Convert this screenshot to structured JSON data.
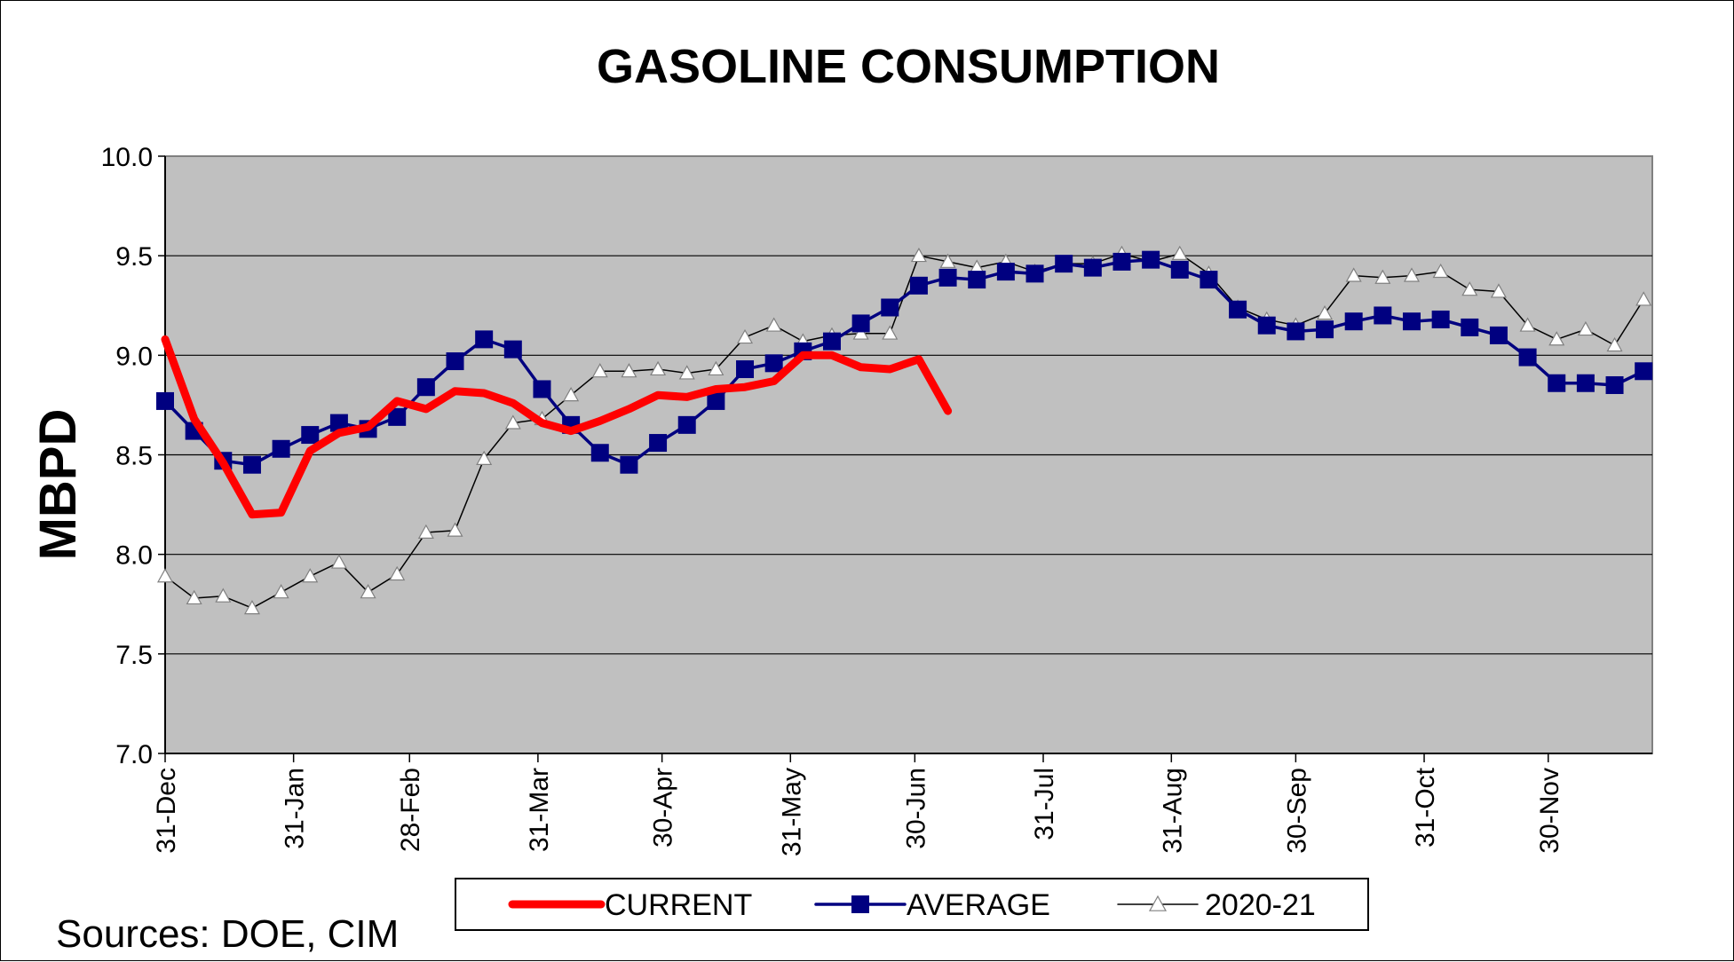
{
  "chart_data": {
    "type": "line",
    "title": "GASOLINE CONSUMPTION",
    "ylabel": "MBPD",
    "xlabel": "",
    "ylim": [
      7.0,
      10.0
    ],
    "yticks": [
      "7.0",
      "7.5",
      "8.0",
      "8.5",
      "9.0",
      "9.5",
      "10.0"
    ],
    "ytick_values": [
      7.0,
      7.5,
      8.0,
      8.5,
      9.0,
      9.5,
      10.0
    ],
    "xticks": [
      {
        "label": "31-Dec",
        "week": 0
      },
      {
        "label": "31-Jan",
        "week": 4.43
      },
      {
        "label": "28-Feb",
        "week": 8.43
      },
      {
        "label": "31-Mar",
        "week": 12.86
      },
      {
        "label": "30-Apr",
        "week": 17.14
      },
      {
        "label": "31-May",
        "week": 21.57
      },
      {
        "label": "30-Jun",
        "week": 25.86
      },
      {
        "label": "31-Jul",
        "week": 30.29
      },
      {
        "label": "31-Aug",
        "week": 34.71
      },
      {
        "label": "30-Sep",
        "week": 39.0
      },
      {
        "label": "31-Oct",
        "week": 43.43
      },
      {
        "label": "30-Nov",
        "week": 47.71
      }
    ],
    "x_max_week": 51.3,
    "grid": true,
    "legend_position": "bottom",
    "series": [
      {
        "name": "CURRENT",
        "color": "#ff0000",
        "marker": "none",
        "values": [
          9.08,
          8.68,
          8.46,
          8.2,
          8.21,
          8.52,
          8.61,
          8.64,
          8.77,
          8.73,
          8.82,
          8.81,
          8.76,
          8.66,
          8.62,
          8.67,
          8.73,
          8.8,
          8.79,
          8.83,
          8.84,
          8.87,
          9.0,
          9.0,
          8.94,
          8.93,
          8.98,
          8.72
        ]
      },
      {
        "name": "AVERAGE",
        "color": "#000080",
        "marker": "square",
        "values": [
          8.77,
          8.62,
          8.47,
          8.45,
          8.53,
          8.6,
          8.66,
          8.63,
          8.69,
          8.84,
          8.97,
          9.08,
          9.03,
          8.83,
          8.65,
          8.51,
          8.45,
          8.56,
          8.65,
          8.77,
          8.93,
          8.96,
          9.02,
          9.07,
          9.16,
          9.24,
          9.35,
          9.39,
          9.38,
          9.42,
          9.41,
          9.46,
          9.44,
          9.47,
          9.48,
          9.43,
          9.38,
          9.23,
          9.15,
          9.12,
          9.13,
          9.17,
          9.2,
          9.17,
          9.18,
          9.14,
          9.1,
          8.99,
          8.86,
          8.86,
          8.85,
          8.92
        ]
      },
      {
        "name": "2020-21",
        "color": "#000000",
        "marker": "triangle",
        "values": [
          7.89,
          7.78,
          7.79,
          7.73,
          7.81,
          7.89,
          7.96,
          7.81,
          7.9,
          8.11,
          8.12,
          8.48,
          8.66,
          8.68,
          8.8,
          8.92,
          8.92,
          8.93,
          8.91,
          8.93,
          9.09,
          9.15,
          9.07,
          9.1,
          9.11,
          9.11,
          9.5,
          9.47,
          9.44,
          9.47,
          9.42,
          9.46,
          9.46,
          9.51,
          9.47,
          9.51,
          9.41,
          9.24,
          9.18,
          9.15,
          9.21,
          9.4,
          9.39,
          9.4,
          9.42,
          9.33,
          9.32,
          9.15,
          9.08,
          9.13,
          9.05,
          9.28
        ]
      }
    ]
  },
  "footer": {
    "sources": "Sources:  DOE, CIM"
  }
}
